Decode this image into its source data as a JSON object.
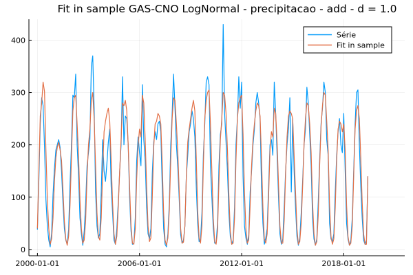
{
  "chart_data": {
    "type": "line",
    "title": "Fit in sample GAS-CNO LogNormal - precipitacao - add - d = 1.0",
    "xlabel": "",
    "ylabel": "",
    "x_start": "2000-01",
    "x_step": "monthly",
    "xlim": [
      "1999-07",
      "2021-08"
    ],
    "ylim": [
      -12,
      440
    ],
    "xticks": [
      {
        "value": "2000-01",
        "label": "2000-01-01"
      },
      {
        "value": "2006-01",
        "label": "2006-01-01"
      },
      {
        "value": "2012-01",
        "label": "2012-01-01"
      },
      {
        "value": "2018-01",
        "label": "2018-01-01"
      }
    ],
    "yticks": [
      0,
      100,
      200,
      300,
      400
    ],
    "grid": true,
    "legend": "top-right",
    "series": [
      {
        "name": "Série",
        "color": "#009AFA",
        "values": [
          38,
          130,
          240,
          290,
          275,
          197,
          95,
          45,
          18,
          5,
          30,
          105,
          155,
          190,
          200,
          210,
          195,
          150,
          90,
          40,
          18,
          10,
          38,
          125,
          200,
          295,
          290,
          335,
          200,
          140,
          60,
          30,
          8,
          35,
          88,
          160,
          185,
          210,
          350,
          370,
          270,
          110,
          45,
          22,
          30,
          110,
          210,
          150,
          130,
          165,
          205,
          230,
          120,
          70,
          18,
          10,
          40,
          90,
          150,
          200,
          330,
          200,
          255,
          250,
          200,
          100,
          35,
          10,
          12,
          60,
          170,
          215,
          185,
          160,
          315,
          210,
          170,
          80,
          30,
          20,
          40,
          145,
          205,
          225,
          210,
          240,
          245,
          225,
          120,
          40,
          10,
          5,
          30,
          88,
          200,
          260,
          335,
          270,
          200,
          155,
          95,
          28,
          12,
          18,
          45,
          140,
          180,
          225,
          240,
          265,
          250,
          215,
          120,
          50,
          15,
          18,
          70,
          180,
          240,
          320,
          330,
          315,
          160,
          100,
          40,
          12,
          12,
          50,
          160,
          220,
          240,
          430,
          260,
          205,
          150,
          70,
          25,
          10,
          18,
          80,
          200,
          250,
          330,
          270,
          320,
          140,
          45,
          22,
          10,
          28,
          110,
          150,
          200,
          230,
          280,
          300,
          280,
          250,
          120,
          50,
          10,
          22,
          40,
          120,
          200,
          210,
          180,
          320,
          260,
          180,
          100,
          30,
          10,
          20,
          80,
          150,
          200,
          230,
          290,
          110,
          250,
          150,
          80,
          25,
          8,
          22,
          70,
          130,
          200,
          230,
          310,
          280,
          220,
          160,
          60,
          20,
          8,
          20,
          90,
          170,
          240,
          270,
          320,
          300,
          210,
          180,
          50,
          20,
          15,
          30,
          110,
          180,
          225,
          250,
          200,
          185,
          260,
          150,
          50,
          20,
          8,
          18,
          60,
          150,
          240,
          300,
          305,
          200,
          120,
          60,
          18,
          10,
          18,
          140
        ]
      },
      {
        "name": "Fit in sample",
        "color": "#E26F46",
        "values": [
          40,
          150,
          255,
          280,
          320,
          302,
          190,
          95,
          40,
          10,
          20,
          60,
          130,
          175,
          195,
          205,
          190,
          170,
          115,
          55,
          20,
          8,
          25,
          85,
          175,
          265,
          290,
          295,
          240,
          180,
          95,
          40,
          12,
          18,
          55,
          140,
          200,
          230,
          285,
          300,
          250,
          160,
          70,
          25,
          18,
          60,
          150,
          225,
          245,
          260,
          270,
          245,
          170,
          90,
          30,
          10,
          25,
          80,
          150,
          210,
          280,
          275,
          285,
          265,
          200,
          120,
          45,
          12,
          10,
          40,
          135,
          200,
          230,
          215,
          295,
          280,
          210,
          120,
          45,
          15,
          22,
          100,
          195,
          240,
          245,
          260,
          255,
          240,
          165,
          70,
          18,
          8,
          22,
          75,
          170,
          250,
          290,
          285,
          240,
          185,
          110,
          40,
          12,
          14,
          45,
          140,
          205,
          230,
          250,
          270,
          285,
          265,
          175,
          75,
          22,
          12,
          45,
          160,
          250,
          285,
          300,
          305,
          240,
          150,
          60,
          15,
          10,
          35,
          130,
          210,
          250,
          300,
          295,
          260,
          190,
          105,
          35,
          10,
          12,
          60,
          170,
          250,
          280,
          290,
          295,
          220,
          110,
          40,
          12,
          18,
          85,
          160,
          210,
          240,
          265,
          280,
          275,
          255,
          175,
          80,
          20,
          12,
          30,
          100,
          190,
          225,
          215,
          270,
          260,
          205,
          125,
          45,
          12,
          12,
          55,
          145,
          215,
          255,
          265,
          260,
          250,
          180,
          110,
          40,
          10,
          15,
          50,
          120,
          200,
          250,
          280,
          275,
          240,
          185,
          90,
          30,
          8,
          15,
          65,
          160,
          235,
          275,
          300,
          295,
          245,
          190,
          85,
          25,
          10,
          20,
          80,
          170,
          230,
          245,
          240,
          225,
          240,
          190,
          85,
          25,
          8,
          12,
          45,
          140,
          230,
          265,
          275,
          250,
          175,
          90,
          30,
          10,
          10,
          140
        ]
      }
    ]
  }
}
